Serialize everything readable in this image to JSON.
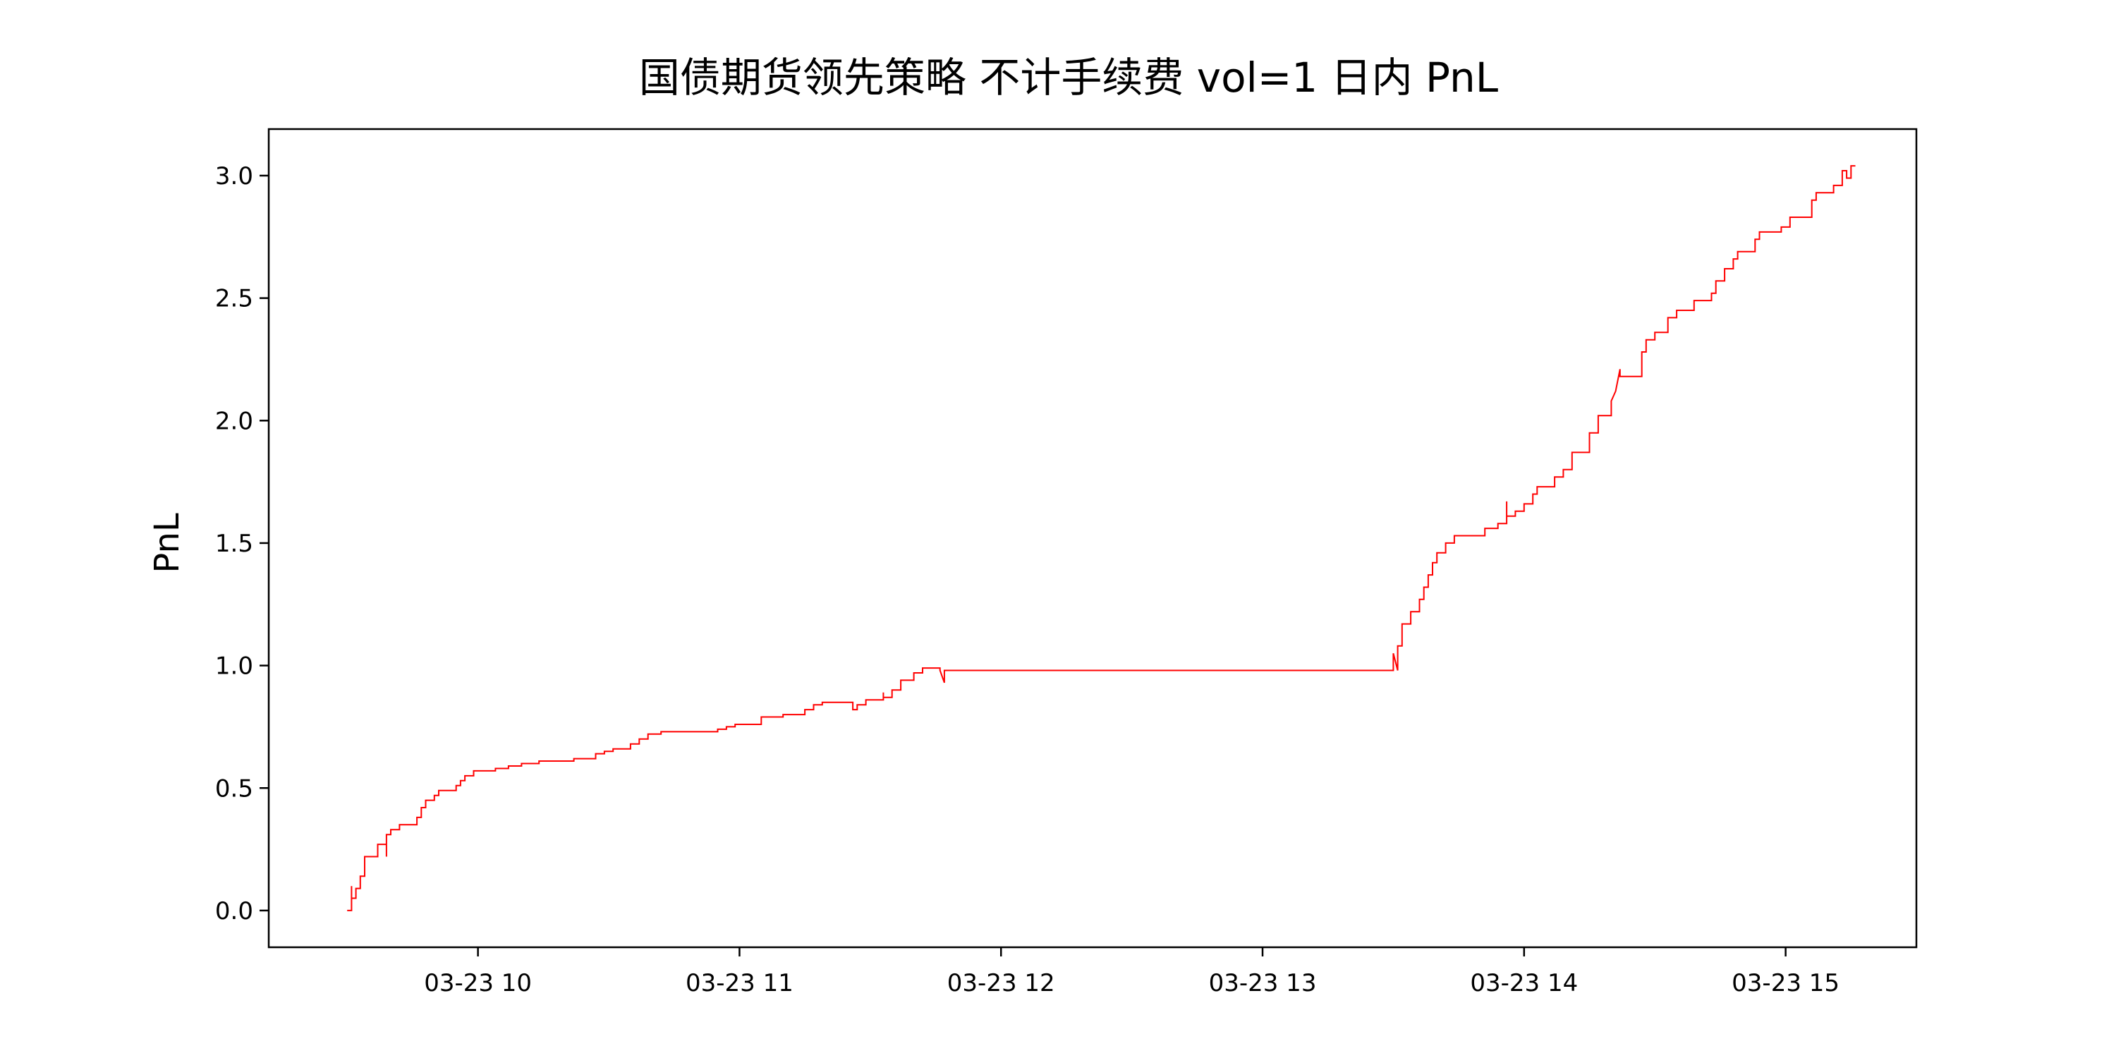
{
  "chart_data": {
    "type": "line",
    "title": "国债期货领先策略 不计手续费 vol=1 日内 PnL",
    "xlabel": "",
    "ylabel": "PnL",
    "x_date_prefix": "03-23",
    "xlim": [
      "09:12",
      "15:30"
    ],
    "ylim": [
      -0.15,
      3.19
    ],
    "x_ticks": [
      "03-23 10",
      "03-23 11",
      "03-23 12",
      "03-23 13",
      "03-23 14",
      "03-23 15"
    ],
    "y_ticks": [
      "0.0",
      "0.5",
      "1.0",
      "1.5",
      "2.0",
      "2.5",
      "3.0"
    ],
    "grid": false,
    "line_color": "#ff0000",
    "series": [
      {
        "name": "",
        "step": true,
        "points": [
          [
            "09:30",
            0.0
          ],
          [
            "09:31",
            0.0
          ],
          [
            "09:31",
            0.1
          ],
          [
            "09:31",
            0.05
          ],
          [
            "09:32",
            0.05
          ],
          [
            "09:32",
            0.09
          ],
          [
            "09:33",
            0.09
          ],
          [
            "09:33",
            0.14
          ],
          [
            "09:34",
            0.14
          ],
          [
            "09:34",
            0.22
          ],
          [
            "09:37",
            0.22
          ],
          [
            "09:37",
            0.27
          ],
          [
            "09:39",
            0.27
          ],
          [
            "09:39",
            0.22
          ],
          [
            "09:39",
            0.31
          ],
          [
            "09:40",
            0.31
          ],
          [
            "09:40",
            0.33
          ],
          [
            "09:42",
            0.33
          ],
          [
            "09:42",
            0.35
          ],
          [
            "09:46",
            0.35
          ],
          [
            "09:46",
            0.38
          ],
          [
            "09:47",
            0.38
          ],
          [
            "09:47",
            0.42
          ],
          [
            "09:48",
            0.42
          ],
          [
            "09:48",
            0.45
          ],
          [
            "09:50",
            0.45
          ],
          [
            "09:50",
            0.47
          ],
          [
            "09:51",
            0.47
          ],
          [
            "09:51",
            0.49
          ],
          [
            "09:55",
            0.49
          ],
          [
            "09:55",
            0.51
          ],
          [
            "09:56",
            0.51
          ],
          [
            "09:56",
            0.53
          ],
          [
            "09:57",
            0.53
          ],
          [
            "09:57",
            0.55
          ],
          [
            "09:59",
            0.55
          ],
          [
            "09:59",
            0.57
          ],
          [
            "10:04",
            0.57
          ],
          [
            "10:04",
            0.58
          ],
          [
            "10:07",
            0.58
          ],
          [
            "10:07",
            0.59
          ],
          [
            "10:10",
            0.59
          ],
          [
            "10:10",
            0.6
          ],
          [
            "10:14",
            0.6
          ],
          [
            "10:14",
            0.61
          ],
          [
            "10:22",
            0.61
          ],
          [
            "10:22",
            0.62
          ],
          [
            "10:27",
            0.62
          ],
          [
            "10:27",
            0.64
          ],
          [
            "10:29",
            0.64
          ],
          [
            "10:29",
            0.65
          ],
          [
            "10:31",
            0.65
          ],
          [
            "10:31",
            0.66
          ],
          [
            "10:35",
            0.66
          ],
          [
            "10:35",
            0.68
          ],
          [
            "10:37",
            0.68
          ],
          [
            "10:37",
            0.7
          ],
          [
            "10:39",
            0.7
          ],
          [
            "10:39",
            0.72
          ],
          [
            "10:42",
            0.72
          ],
          [
            "10:42",
            0.73
          ],
          [
            "10:55",
            0.73
          ],
          [
            "10:55",
            0.74
          ],
          [
            "10:57",
            0.74
          ],
          [
            "10:57",
            0.75
          ],
          [
            "10:59",
            0.75
          ],
          [
            "10:59",
            0.76
          ],
          [
            "11:05",
            0.76
          ],
          [
            "11:05",
            0.79
          ],
          [
            "11:10",
            0.79
          ],
          [
            "11:10",
            0.8
          ],
          [
            "11:15",
            0.8
          ],
          [
            "11:15",
            0.82
          ],
          [
            "11:17",
            0.82
          ],
          [
            "11:17",
            0.84
          ],
          [
            "11:19",
            0.84
          ],
          [
            "11:19",
            0.85
          ],
          [
            "11:26",
            0.85
          ],
          [
            "11:26",
            0.82
          ],
          [
            "11:27",
            0.82
          ],
          [
            "11:27",
            0.84
          ],
          [
            "11:29",
            0.84
          ],
          [
            "11:29",
            0.86
          ],
          [
            "11:33",
            0.86
          ],
          [
            "11:33",
            0.89
          ],
          [
            "11:33",
            0.87
          ],
          [
            "11:35",
            0.87
          ],
          [
            "11:35",
            0.9
          ],
          [
            "11:37",
            0.9
          ],
          [
            "11:37",
            0.94
          ],
          [
            "11:40",
            0.94
          ],
          [
            "11:40",
            0.97
          ],
          [
            "11:42",
            0.97
          ],
          [
            "11:42",
            0.99
          ],
          [
            "11:46",
            0.99
          ],
          [
            "11:46",
            0.98
          ],
          [
            "11:47",
            0.93
          ],
          [
            "11:47",
            0.98
          ],
          [
            "13:30",
            0.98
          ],
          [
            "13:30",
            1.05
          ],
          [
            "13:31",
            0.98
          ],
          [
            "13:31",
            1.08
          ],
          [
            "13:32",
            1.08
          ],
          [
            "13:32",
            1.17
          ],
          [
            "13:34",
            1.17
          ],
          [
            "13:34",
            1.22
          ],
          [
            "13:36",
            1.22
          ],
          [
            "13:36",
            1.27
          ],
          [
            "13:37",
            1.27
          ],
          [
            "13:37",
            1.32
          ],
          [
            "13:38",
            1.32
          ],
          [
            "13:38",
            1.37
          ],
          [
            "13:39",
            1.37
          ],
          [
            "13:39",
            1.42
          ],
          [
            "13:40",
            1.42
          ],
          [
            "13:40",
            1.46
          ],
          [
            "13:42",
            1.46
          ],
          [
            "13:42",
            1.5
          ],
          [
            "13:44",
            1.5
          ],
          [
            "13:44",
            1.53
          ],
          [
            "13:51",
            1.53
          ],
          [
            "13:51",
            1.56
          ],
          [
            "13:54",
            1.56
          ],
          [
            "13:54",
            1.58
          ],
          [
            "13:56",
            1.58
          ],
          [
            "13:56",
            1.67
          ],
          [
            "13:56",
            1.61
          ],
          [
            "13:58",
            1.61
          ],
          [
            "13:58",
            1.63
          ],
          [
            "14:00",
            1.63
          ],
          [
            "14:00",
            1.66
          ],
          [
            "14:02",
            1.66
          ],
          [
            "14:02",
            1.7
          ],
          [
            "14:03",
            1.7
          ],
          [
            "14:03",
            1.73
          ],
          [
            "14:07",
            1.73
          ],
          [
            "14:07",
            1.77
          ],
          [
            "14:09",
            1.77
          ],
          [
            "14:09",
            1.8
          ],
          [
            "14:11",
            1.8
          ],
          [
            "14:11",
            1.87
          ],
          [
            "14:15",
            1.87
          ],
          [
            "14:15",
            1.95
          ],
          [
            "14:17",
            1.95
          ],
          [
            "14:17",
            2.02
          ],
          [
            "14:20",
            2.02
          ],
          [
            "14:20",
            2.08
          ],
          [
            "14:21",
            2.12
          ],
          [
            "14:22",
            2.21
          ],
          [
            "14:22",
            2.18
          ],
          [
            "14:27",
            2.18
          ],
          [
            "14:27",
            2.28
          ],
          [
            "14:28",
            2.28
          ],
          [
            "14:28",
            2.33
          ],
          [
            "14:30",
            2.33
          ],
          [
            "14:30",
            2.36
          ],
          [
            "14:33",
            2.36
          ],
          [
            "14:33",
            2.42
          ],
          [
            "14:35",
            2.42
          ],
          [
            "14:35",
            2.45
          ],
          [
            "14:39",
            2.45
          ],
          [
            "14:39",
            2.49
          ],
          [
            "14:43",
            2.49
          ],
          [
            "14:43",
            2.52
          ],
          [
            "14:44",
            2.52
          ],
          [
            "14:44",
            2.57
          ],
          [
            "14:46",
            2.57
          ],
          [
            "14:46",
            2.62
          ],
          [
            "14:48",
            2.62
          ],
          [
            "14:48",
            2.66
          ],
          [
            "14:49",
            2.66
          ],
          [
            "14:49",
            2.69
          ],
          [
            "14:53",
            2.69
          ],
          [
            "14:53",
            2.74
          ],
          [
            "14:54",
            2.74
          ],
          [
            "14:54",
            2.77
          ],
          [
            "14:59",
            2.77
          ],
          [
            "14:59",
            2.79
          ],
          [
            "15:01",
            2.79
          ],
          [
            "15:01",
            2.83
          ],
          [
            "15:06",
            2.83
          ],
          [
            "15:06",
            2.9
          ],
          [
            "15:07",
            2.9
          ],
          [
            "15:07",
            2.93
          ],
          [
            "15:11",
            2.93
          ],
          [
            "15:11",
            2.96
          ],
          [
            "15:13",
            2.96
          ],
          [
            "15:13",
            3.02
          ],
          [
            "15:14",
            3.02
          ],
          [
            "15:14",
            2.99
          ],
          [
            "15:15",
            2.99
          ],
          [
            "15:15",
            3.04
          ],
          [
            "15:16",
            3.04
          ]
        ]
      }
    ]
  }
}
